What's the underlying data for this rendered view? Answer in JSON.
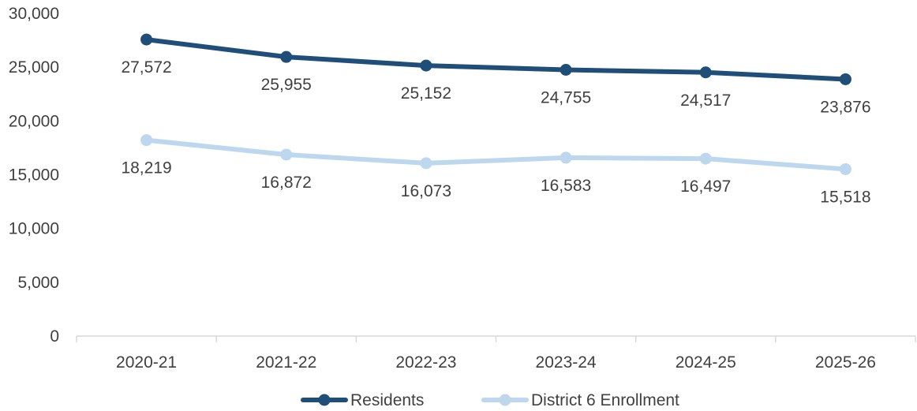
{
  "chart_data": {
    "type": "line",
    "categories": [
      "2020-21",
      "2021-22",
      "2022-23",
      "2023-24",
      "2024-25",
      "2025-26"
    ],
    "series": [
      {
        "name": "Residents",
        "values": [
          27572,
          25955,
          25152,
          24755,
          24517,
          23876
        ],
        "labels": [
          "27,572",
          "25,955",
          "25,152",
          "24,755",
          "24,517",
          "23,876"
        ],
        "color": "#1f4e79"
      },
      {
        "name": "District 6 Enrollment",
        "values": [
          18219,
          16872,
          16073,
          16583,
          16497,
          15518
        ],
        "labels": [
          "18,219",
          "16,872",
          "16,073",
          "16,583",
          "16,497",
          "15,518"
        ],
        "color": "#bdd7ee"
      }
    ],
    "ylim": [
      0,
      30000
    ],
    "yticks": [
      0,
      5000,
      10000,
      15000,
      20000,
      25000,
      30000
    ],
    "ytick_labels": [
      "0",
      "5,000",
      "10,000",
      "15,000",
      "20,000",
      "25,000",
      "30,000"
    ],
    "grid": false,
    "legend": "bottom"
  }
}
